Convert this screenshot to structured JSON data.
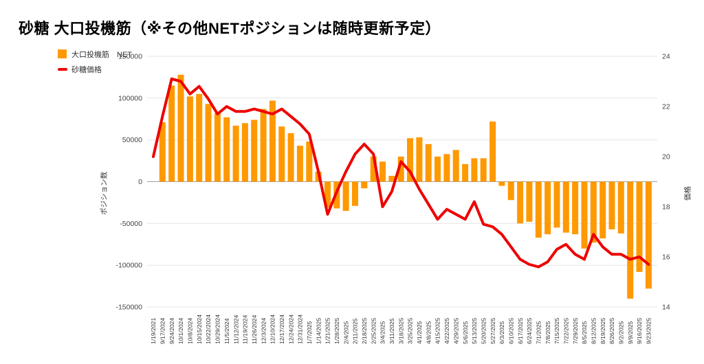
{
  "title": "砂糖 大口投機筋（※その他NETポジションは随時更新予定）",
  "legend": {
    "net_label": "大口投機筋　NET",
    "price_label": "砂糖価格"
  },
  "colors": {
    "bar": "#ff9900",
    "line": "#ee0000",
    "grid": "#e4e4e4",
    "zero_line": "#9e9e9e",
    "tick_text": "#444444",
    "x_tick_text": "#333333"
  },
  "chart_data": {
    "type": "bar",
    "title": "砂糖 大口投機筋（※その他NETポジションは随時更新予定）",
    "legend_position": "top-left",
    "grid": true,
    "categories": [
      "1/19/2021",
      "9/17/2024",
      "9/24/2024",
      "10/1/2024",
      "10/8/2024",
      "10/15/2024",
      "10/22/2024",
      "10/29/2024",
      "11/5/2024",
      "11/12/2024",
      "11/19/2024",
      "11/26/2024",
      "12/3/2024",
      "12/10/2024",
      "12/17/2024",
      "12/24/2024",
      "12/31/2024",
      "1/7/2025",
      "1/14/2025",
      "1/21/2025",
      "1/28/2025",
      "2/4/2025",
      "2/11/2025",
      "2/18/2025",
      "2/25/2025",
      "3/4/2025",
      "3/11/2025",
      "3/18/2025",
      "3/25/2025",
      "4/1/2025",
      "4/8/2025",
      "4/15/2025",
      "4/22/2025",
      "4/29/2025",
      "5/6/2025",
      "5/13/2025",
      "5/20/2025",
      "5/27/2025",
      "6/3/2025",
      "6/10/2025",
      "6/17/2025",
      "6/24/2025",
      "7/1/2025",
      "7/8/2025",
      "7/15/2025",
      "7/22/2025",
      "7/29/2025",
      "8/5/2025",
      "8/12/2025",
      "8/19/2025",
      "8/26/2025",
      "9/2/2025",
      "9/9/2025",
      "9/16/2025",
      "9/23/2025"
    ],
    "series": [
      {
        "name": "大口投機筋　NET",
        "type": "bar",
        "axis": "left",
        "color": "#ff9900",
        "values": [
          null,
          71000,
          115000,
          128000,
          102000,
          105000,
          93000,
          82000,
          77000,
          67000,
          70000,
          74000,
          87000,
          97000,
          66000,
          58000,
          43000,
          48000,
          12000,
          -31000,
          -32000,
          -35000,
          -29000,
          -8000,
          30000,
          24000,
          7000,
          30000,
          52000,
          53000,
          45000,
          30000,
          33000,
          38000,
          21000,
          28000,
          28000,
          72000,
          -5000,
          -22000,
          -50000,
          -48000,
          -67000,
          -63000,
          -55000,
          -61000,
          -63000,
          -80000,
          -73000,
          -68000,
          -57000,
          -62000,
          -140000,
          -108000,
          -128000
        ]
      },
      {
        "name": "砂糖価格",
        "type": "line",
        "axis": "right",
        "color": "#ee0000",
        "values": [
          20.0,
          21.6,
          23.1,
          23.0,
          22.5,
          22.8,
          22.3,
          21.7,
          22.0,
          21.8,
          21.8,
          21.9,
          21.8,
          21.7,
          21.9,
          21.6,
          21.3,
          20.9,
          19.4,
          17.7,
          18.6,
          19.4,
          20.1,
          20.5,
          20.1,
          18.0,
          18.6,
          19.8,
          19.4,
          18.7,
          18.1,
          17.5,
          17.9,
          17.7,
          17.5,
          18.2,
          17.3,
          17.2,
          16.9,
          16.4,
          15.9,
          15.7,
          15.6,
          15.8,
          16.3,
          16.5,
          16.1,
          15.9,
          16.9,
          16.4,
          16.1,
          16.1,
          15.9,
          16.0,
          15.7
        ]
      }
    ],
    "left_axis": {
      "title": "ポジション数",
      "min": -150000,
      "max": 150000,
      "ticks": [
        150000,
        100000,
        50000,
        0,
        -50000,
        -100000,
        -150000
      ],
      "tick_labels": [
        "150000",
        "100000",
        "50000",
        "0",
        "-50000",
        "-100000",
        "-150000"
      ]
    },
    "right_axis": {
      "title": "価格",
      "min": 14,
      "max": 24,
      "ticks": [
        24,
        22,
        20,
        18,
        16,
        14
      ],
      "tick_labels": [
        "24",
        "22",
        "20",
        "18",
        "16",
        "14"
      ]
    }
  }
}
